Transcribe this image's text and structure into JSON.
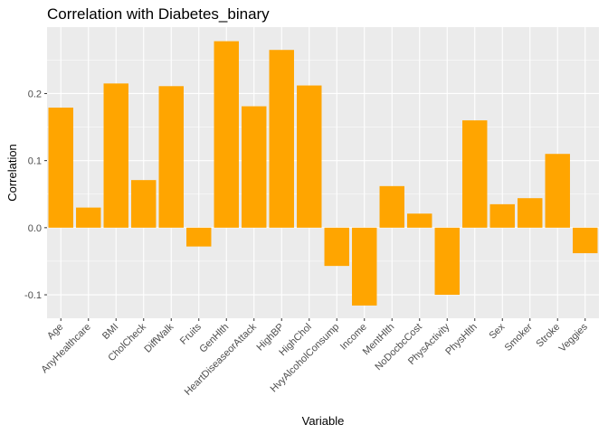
{
  "chart_data": {
    "type": "bar",
    "title": "Correlation with Diabetes_binary",
    "xlabel": "Variable",
    "ylabel": "Correlation",
    "categories": [
      "Age",
      "AnyHealthcare",
      "BMI",
      "CholCheck",
      "DiffWalk",
      "Fruits",
      "GenHlth",
      "HeartDiseaseorAttack",
      "HighBP",
      "HighChol",
      "HvyAlcoholConsump",
      "Income",
      "MentHlth",
      "NoDocbcCost",
      "PhysActivity",
      "PhysHlth",
      "Sex",
      "Smoker",
      "Stroke",
      "Veggies"
    ],
    "values": [
      0.179,
      0.03,
      0.215,
      0.071,
      0.211,
      -0.028,
      0.278,
      0.181,
      0.265,
      0.212,
      -0.057,
      -0.116,
      0.062,
      0.021,
      -0.1,
      0.16,
      0.035,
      0.044,
      0.11,
      -0.038
    ],
    "ylim": [
      -0.135,
      0.299
    ],
    "yticks": [
      -0.1,
      0.0,
      0.1,
      0.2
    ],
    "ytick_labels": [
      "-0.1",
      "0.0",
      "0.1",
      "0.2"
    ],
    "bar_color": "#FFA500",
    "panel_background": "#EBEBEB",
    "grid_color": "#FFFFFF",
    "grid": true,
    "legend": "none"
  }
}
